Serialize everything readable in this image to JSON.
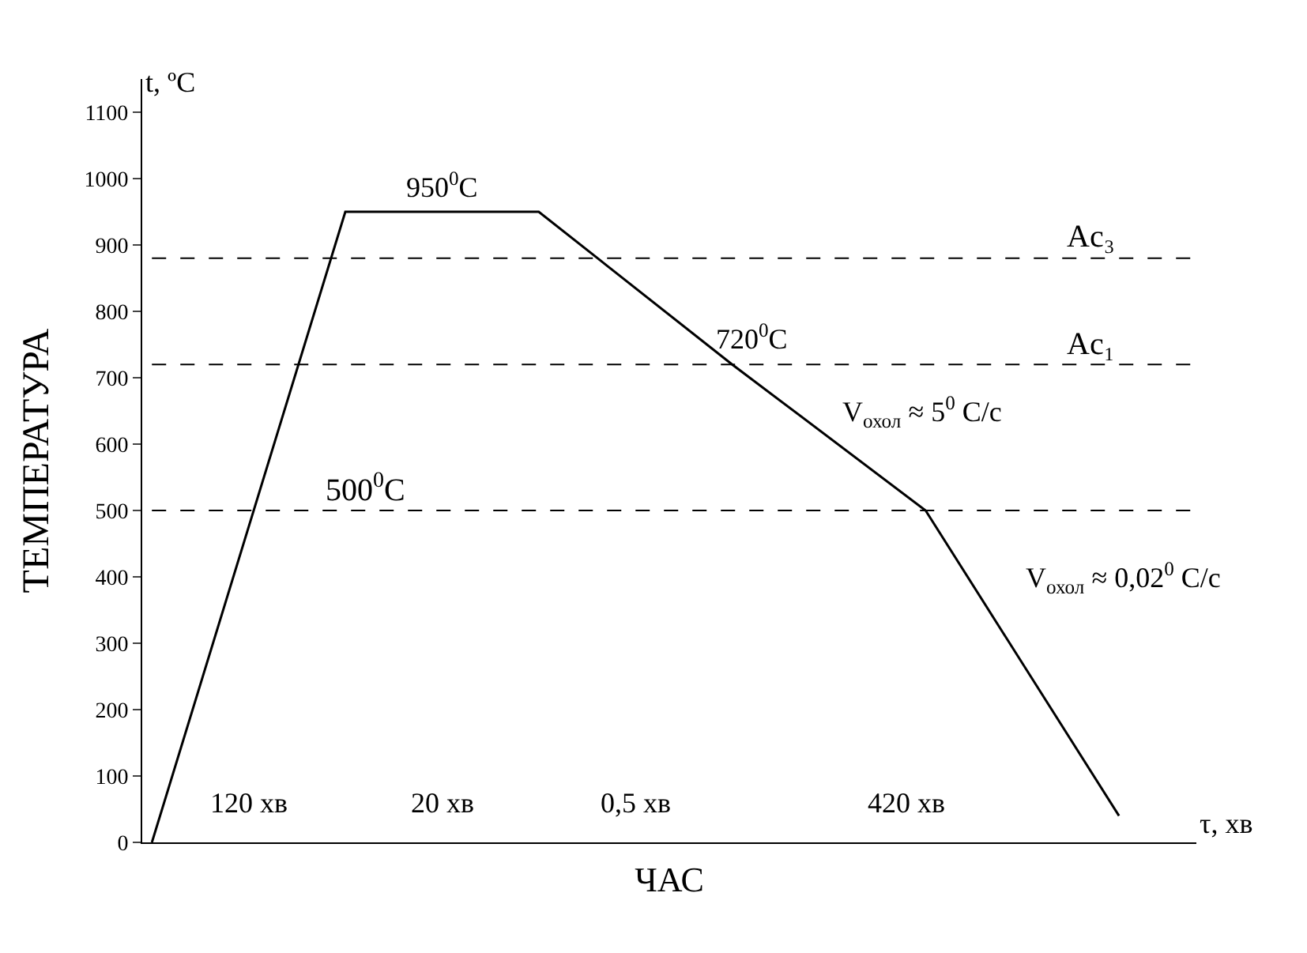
{
  "chart_data": {
    "type": "line",
    "xlabel": "ЧАС",
    "ylabel": "ТЕМПЕРАТУРА",
    "categories": [
      null,
      null,
      null,
      null,
      null,
      null
    ],
    "series": [
      {
        "color": "#000000",
        "values": [
          0,
          950,
          950,
          720,
          500,
          40
        ]
      }
    ],
    "ylim": [
      0,
      1150
    ],
    "yticks": [
      0,
      100,
      200,
      300,
      400,
      500,
      600,
      700,
      800,
      900,
      1000,
      1100
    ],
    "tick_labels": "y",
    "legend": false,
    "marker": "none",
    "line_style": "solid",
    "ref_lines": [
      {
        "axis": "y",
        "value": 880,
        "label": "Ac₃",
        "color": "#000000",
        "line_style": "dashed"
      },
      {
        "axis": "y",
        "value": 720,
        "label": "Ac₁",
        "color": "#000000",
        "line_style": "dashed"
      },
      {
        "axis": "y",
        "value": 500,
        "label": "500$^{0}$C",
        "color": "#000000",
        "line_style": "dashed"
      }
    ],
    "annotations": [
      "t, ºC",
      "τ, хв",
      "950$^{0}$C",
      "720$^{0}$C",
      "V$_{охол}$ ≈ 5$^{0}$ C/с",
      "V$_{охол}$ ≈ 0,02$^{0}$ C/с",
      "120 хв",
      "20 хв",
      "0,5 хв",
      "420 хв"
    ]
  }
}
